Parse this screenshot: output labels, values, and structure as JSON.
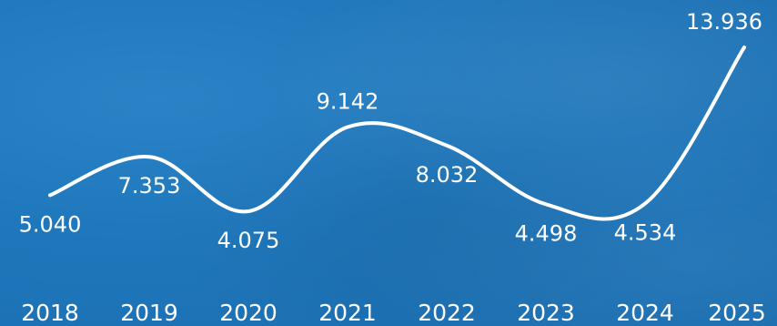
{
  "colors": {
    "background": "#1f77bb",
    "line": "#ffffff",
    "text": "#ffffff"
  },
  "chart_data": {
    "type": "line",
    "x": [
      "2018",
      "2019",
      "2020",
      "2021",
      "2022",
      "2023",
      "2024",
      "2025"
    ],
    "series": [
      {
        "values": [
          5.04,
          7.353,
          4.075,
          9.142,
          8.032,
          4.498,
          4.534,
          13.936
        ]
      }
    ],
    "data_labels": [
      "5.040",
      "7.353",
      "4.075",
      "9.142",
      "8.032",
      "4.498",
      "4.534",
      "13.936"
    ],
    "title": "",
    "xlabel": "",
    "ylabel": "",
    "grid": false,
    "legend": "none"
  }
}
